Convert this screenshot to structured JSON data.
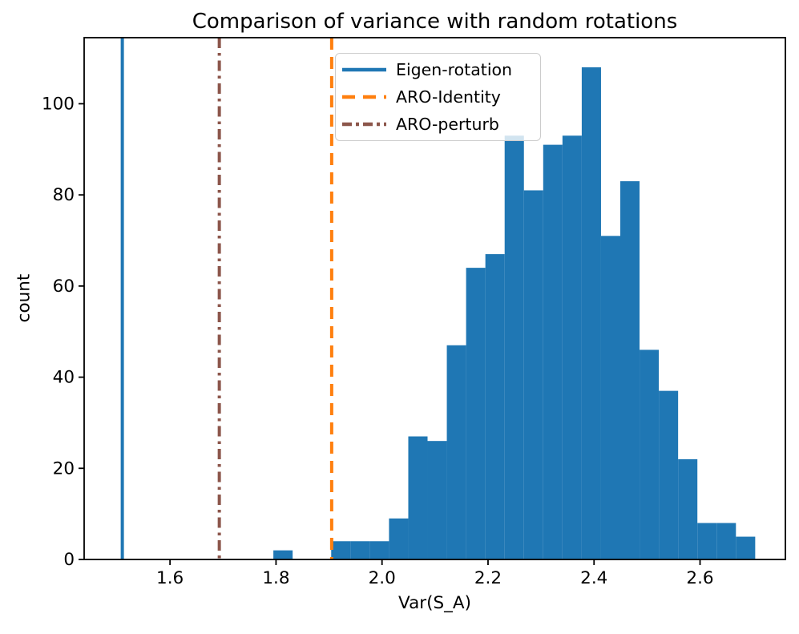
{
  "chart_data": {
    "type": "bar",
    "subtype": "histogram",
    "title": "Comparison of variance with random rotations",
    "xlabel": "Var(S_A)",
    "ylabel": "count",
    "histogram": {
      "bin_start": 1.795,
      "bin_width": 0.036363,
      "counts": [
        2,
        0,
        0,
        4,
        4,
        4,
        9,
        27,
        26,
        47,
        64,
        67,
        93,
        81,
        91,
        93,
        108,
        71,
        83,
        46,
        37,
        22,
        8,
        8,
        5
      ],
      "color": "#1f77b4"
    },
    "vlines": [
      {
        "label": "Eigen-rotation",
        "x": 1.51,
        "color": "#1f77b4",
        "style": "solid"
      },
      {
        "label": "ARO-Identity",
        "x": 1.905,
        "color": "#ff7f0e",
        "style": "dashed"
      },
      {
        "label": "ARO-perturb",
        "x": 1.693,
        "color": "#8c564b",
        "style": "dashdot"
      }
    ],
    "xticks": [
      1.6,
      1.8,
      2.0,
      2.2,
      2.4,
      2.6
    ],
    "xtick_labels": [
      "1.6",
      "1.8",
      "2.0",
      "2.2",
      "2.4",
      "2.6"
    ],
    "yticks": [
      0,
      20,
      40,
      60,
      80,
      100
    ],
    "ytick_labels": [
      "0",
      "20",
      "40",
      "60",
      "80",
      "100"
    ],
    "xlim": [
      1.438,
      2.761
    ],
    "ylim": [
      0,
      114.5
    ],
    "grid": false,
    "legend_position": "upper center-left, inside axes",
    "axis_color": "#000000",
    "legend_border_color": "#cccccc"
  }
}
